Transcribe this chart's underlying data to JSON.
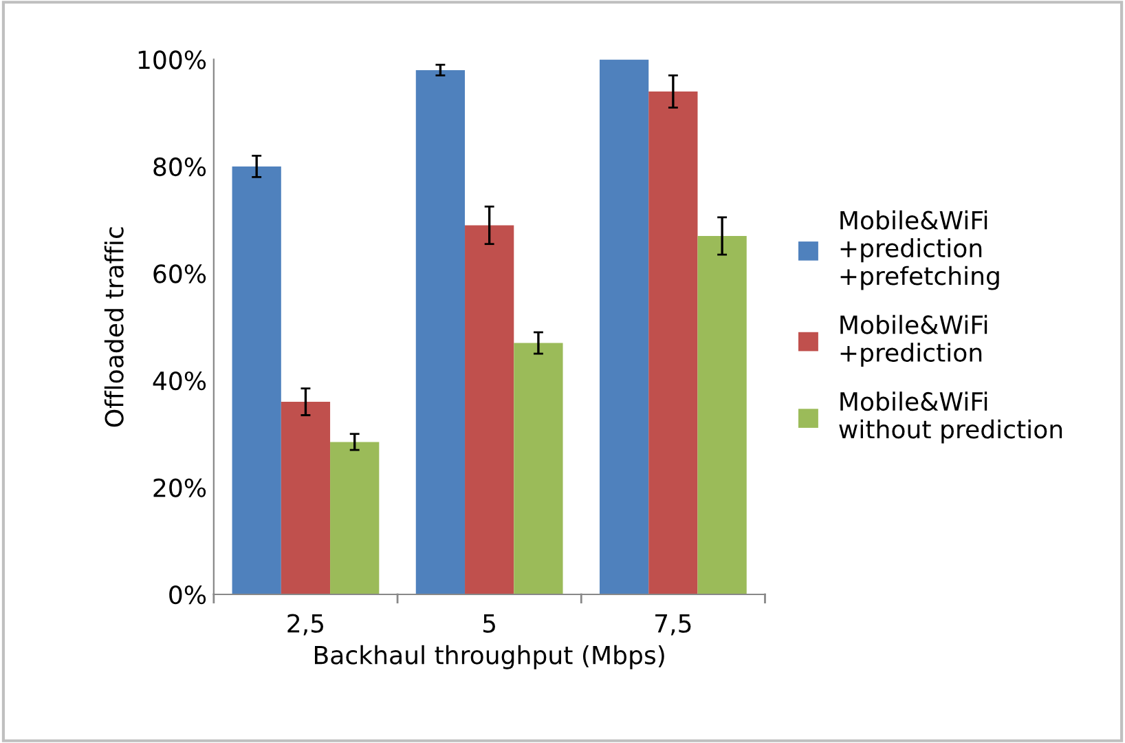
{
  "chart_data": {
    "type": "bar",
    "xlabel": "Backhaul throughput (Mbps)",
    "ylabel": "Offloaded traffic",
    "categories": [
      "2,5",
      "5",
      "7,5"
    ],
    "series": [
      {
        "name": "Mobile&WiFi\n+prediction\n+prefetching",
        "color": "#4f81bd",
        "values": [
          80,
          98,
          100
        ],
        "errors": [
          2,
          1,
          null
        ]
      },
      {
        "name": "Mobile&WiFi\n+prediction",
        "color": "#c0504d",
        "values": [
          36,
          69,
          94
        ],
        "errors": [
          2.5,
          3.5,
          3
        ]
      },
      {
        "name": "Mobile&WiFi\nwithout prediction",
        "color": "#9bbb59",
        "values": [
          28.5,
          47,
          67
        ],
        "errors": [
          1.5,
          2,
          3.5
        ]
      }
    ],
    "ylim": [
      0,
      100
    ],
    "yticks": [
      {
        "value": 0,
        "label": "0%"
      },
      {
        "value": 20,
        "label": "20%"
      },
      {
        "value": 40,
        "label": "40%"
      },
      {
        "value": 60,
        "label": "60%"
      },
      {
        "value": 80,
        "label": "80%"
      },
      {
        "value": 100,
        "label": "100%"
      }
    ],
    "grid": false,
    "legend": "right"
  }
}
